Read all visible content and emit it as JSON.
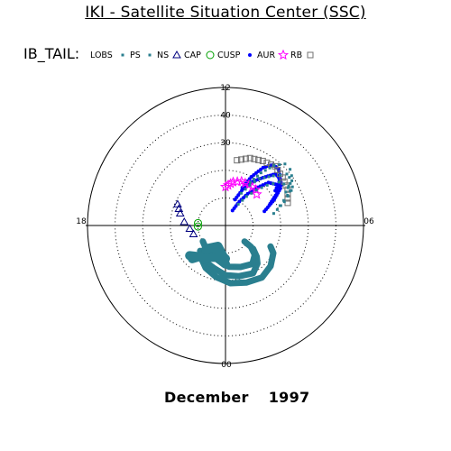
{
  "header": {
    "title": "IKI - Satellite Situation Center (SSC)"
  },
  "footer": {
    "month": "December",
    "year": "1997"
  },
  "chart_data": {
    "type": "scatter",
    "coordinate_system": "polar (MLT clock dial, radial distance)",
    "title": "IKI - Satellite Situation Center (SSC)",
    "legend_title": "IB_TAIL:",
    "legend_placement": "top",
    "angular_labels": {
      "top": "12",
      "right": "06",
      "bottom": "00",
      "left": "18"
    },
    "radial_labels": [
      "40",
      "30"
    ],
    "radial_rings": [
      10,
      20,
      30,
      40
    ],
    "radial_max": 50,
    "grid": true,
    "series": [
      {
        "name": "LOBS",
        "marker": "small-square",
        "color": "#2a7f8f",
        "points": []
      },
      {
        "name": "PS",
        "marker": "small-square",
        "color": "#2a7f8f",
        "points": []
      },
      {
        "name": "NS",
        "marker": "triangle",
        "color": "#00007f",
        "points": []
      },
      {
        "name": "CAP",
        "marker": "circle",
        "color": "#00a000",
        "points": []
      },
      {
        "name": "CUSP",
        "marker": "dot",
        "color": "#0000ff",
        "points": []
      },
      {
        "name": "AUR",
        "marker": "star",
        "color": "#ff00ff",
        "points": []
      },
      {
        "name": "RB",
        "marker": "square",
        "color": "#707070",
        "points": []
      }
    ],
    "traces": {
      "RB": [
        [
          [
            24,
            10
          ],
          [
            26,
            20
          ],
          [
            27,
            30
          ],
          [
            28,
            40
          ],
          [
            27,
            50
          ],
          [
            26,
            60
          ],
          [
            24,
            70
          ]
        ]
      ],
      "CUSP": [
        [
          [
            15,
            70
          ],
          [
            20,
            62
          ],
          [
            24,
            56
          ],
          [
            24,
            52
          ],
          [
            22,
            45
          ],
          [
            18,
            40
          ],
          [
            14,
            35
          ],
          [
            10,
            30
          ],
          [
            6,
            25
          ]
        ],
        [
          [
            18,
            64
          ],
          [
            22,
            58
          ],
          [
            25,
            54
          ],
          [
            26,
            50
          ],
          [
            26,
            44
          ],
          [
            22,
            38
          ],
          [
            18,
            30
          ],
          [
            14,
            25
          ],
          [
            10,
            20
          ]
        ],
        [
          [
            22,
            55
          ],
          [
            25,
            51
          ],
          [
            27,
            47
          ],
          [
            28,
            43
          ],
          [
            28,
            38
          ],
          [
            25,
            33
          ],
          [
            20,
            28
          ],
          [
            15,
            24
          ]
        ]
      ],
      "AUR": [
        [
          [
            14,
            0
          ],
          [
            16,
            10
          ],
          [
            17,
            20
          ],
          [
            17,
            30
          ],
          [
            17,
            40
          ],
          [
            16,
            45
          ]
        ]
      ],
      "PS": [
        [
          [
            12,
            180
          ],
          [
            10,
            200
          ],
          [
            13,
            215
          ],
          [
            17,
            225
          ]
        ],
        [
          [
            14,
            180
          ],
          [
            12,
            195
          ],
          [
            14,
            215
          ],
          [
            17,
            230
          ]
        ],
        [
          [
            11,
            185
          ],
          [
            8,
            200
          ],
          [
            11,
            220
          ]
        ]
      ],
      "LOBS": [
        [
          [
            10,
            235
          ],
          [
            11,
            220
          ],
          [
            12,
            205
          ],
          [
            13,
            190
          ],
          [
            15,
            175
          ],
          [
            16,
            160
          ],
          [
            17,
            145
          ],
          [
            15,
            135
          ],
          [
            12,
            130
          ],
          [
            9,
            130
          ]
        ],
        [
          [
            13,
            225
          ],
          [
            15,
            210
          ],
          [
            16,
            195
          ],
          [
            18,
            180
          ],
          [
            19,
            165
          ],
          [
            20,
            150
          ],
          [
            18,
            140
          ],
          [
            16,
            135
          ],
          [
            13,
            130
          ]
        ],
        [
          [
            15,
            215
          ],
          [
            17,
            205
          ],
          [
            19,
            190
          ],
          [
            21,
            175
          ],
          [
            22,
            160
          ],
          [
            23,
            145
          ],
          [
            22,
            132
          ],
          [
            20,
            120
          ],
          [
            18,
            115
          ]
        ]
      ],
      "NS": [
        [
          [
            12,
            255
          ],
          [
            13,
            265
          ],
          [
            15,
            275
          ],
          [
            17,
            285
          ],
          [
            19,
            294
          ]
        ]
      ],
      "CAP": [
        [
          [
            10,
            268
          ],
          [
            10,
            275
          ]
        ]
      ]
    }
  }
}
